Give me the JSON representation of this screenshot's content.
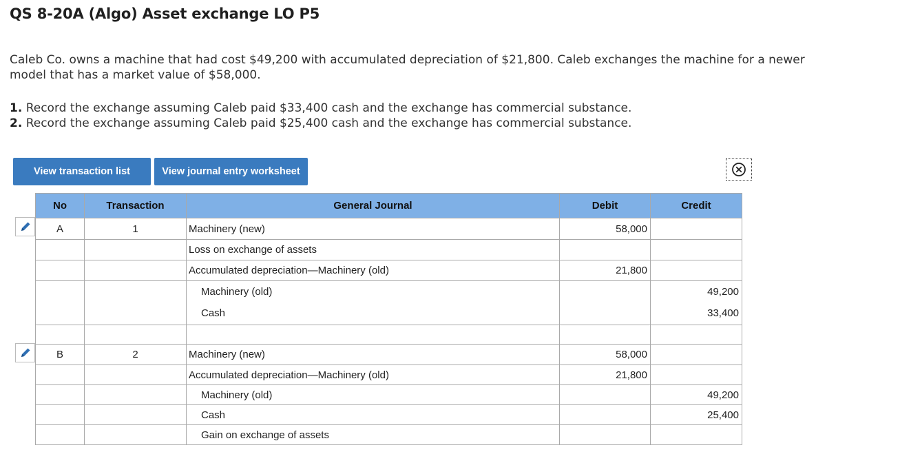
{
  "header": {
    "title": "QS 8-20A (Algo) Asset exchange LO P5"
  },
  "problem": {
    "intro": "Caleb Co. owns a machine that had cost $49,200 with accumulated depreciation of $21,800. Caleb exchanges the machine for a newer model that has a market value of $58,000.",
    "req1_num": "1.",
    "req1_text": " Record the exchange assuming Caleb paid $33,400 cash and the exchange has commercial substance.",
    "req2_num": "2.",
    "req2_text": " Record the exchange assuming Caleb paid $25,400 cash and the exchange has commercial substance."
  },
  "toolbar": {
    "view_transaction_list": "View transaction list",
    "view_journal_worksheet": "View journal entry worksheet",
    "close_icon": "close-circle-icon"
  },
  "journal": {
    "headers": [
      "No",
      "Transaction",
      "General Journal",
      "Debit",
      "Credit"
    ],
    "entry_a": {
      "no": "A",
      "transaction": "1",
      "lines": [
        {
          "account": "Machinery (new)",
          "debit": "58,000",
          "credit": ""
        },
        {
          "account": "Loss on exchange of assets",
          "debit": "",
          "credit": ""
        },
        {
          "account": "Accumulated depreciation—Machinery (old)",
          "debit": "21,800",
          "credit": ""
        },
        {
          "account": "Machinery (old)",
          "debit": "",
          "credit": "49,200"
        },
        {
          "account": "Cash",
          "debit": "",
          "credit": "33,400"
        }
      ]
    },
    "entry_b": {
      "no": "B",
      "transaction": "2",
      "lines": [
        {
          "account": "Machinery (new)",
          "debit": "58,000",
          "credit": ""
        },
        {
          "account": "Accumulated depreciation—Machinery (old)",
          "debit": "21,800",
          "credit": ""
        },
        {
          "account": "Machinery (old)",
          "debit": "",
          "credit": "49,200"
        },
        {
          "account": "Cash",
          "debit": "",
          "credit": "25,400"
        },
        {
          "account": "Gain on exchange of assets",
          "debit": "",
          "credit": ""
        }
      ]
    },
    "edit_icon": "pencil-icon"
  },
  "colors": {
    "button_bg": "#3a7bbf",
    "header_bg": "#7fb0e6",
    "pencil": "#2f6fb3"
  }
}
